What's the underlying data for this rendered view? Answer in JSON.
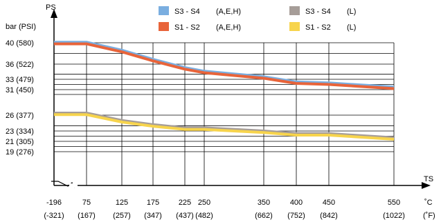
{
  "chart_data": {
    "type": "line",
    "y_axis_label": "PS",
    "y_unit_label": "bar (PSI)",
    "x_axis_label": "TS",
    "x_unit_c": "˚C",
    "x_unit_f": "(˚F)",
    "x_ticks": [
      {
        "c": "-196",
        "f": "(-321)"
      },
      {
        "c": "75",
        "f": "(167)"
      },
      {
        "c": "125",
        "f": "(257)"
      },
      {
        "c": "175",
        "f": "(347)"
      },
      {
        "c": "225",
        "f": "(437)"
      },
      {
        "c": "250",
        "f": "(482)"
      },
      {
        "c": "350",
        "f": "(662)"
      },
      {
        "c": "400",
        "f": "(752)"
      },
      {
        "c": "450",
        "f": "(842)"
      },
      {
        "c": "550",
        "f": "(1022)"
      }
    ],
    "y_ticks": [
      {
        "v": 40,
        "label": "40  (580)"
      },
      {
        "v": 36,
        "label": "36  (522)"
      },
      {
        "v": 33,
        "label": "33  (479)"
      },
      {
        "v": 31,
        "label": "31  (450)"
      },
      {
        "v": 26,
        "label": "26  (377)"
      },
      {
        "v": 23,
        "label": "23  (334)"
      },
      {
        "v": 21,
        "label": "21  (305)"
      },
      {
        "v": 19,
        "label": "19  (276)"
      }
    ],
    "grid_y": [
      40,
      38,
      36,
      34,
      33,
      32,
      31,
      30,
      26,
      24,
      23,
      22,
      21,
      20,
      19
    ],
    "grid_x": [
      75,
      125,
      175,
      225,
      250,
      350,
      400,
      450,
      550
    ],
    "x_range": [
      -196,
      550
    ],
    "y_range": [
      14,
      40
    ],
    "legend_position": "top",
    "series": [
      {
        "name": "S3 - S4",
        "group": "(A,E,H)",
        "color": "#7aaee0",
        "x": [
          -196,
          75,
          125,
          175,
          225,
          250,
          350,
          400,
          450,
          550
        ],
        "y": [
          40.1,
          40.1,
          38.6,
          36.9,
          35.3,
          34.6,
          33.5,
          32.5,
          32.3,
          31.5
        ]
      },
      {
        "name": "S1 - S2",
        "group": "(A,E,H)",
        "color": "#e8643a",
        "x": [
          -196,
          75,
          125,
          175,
          225,
          250,
          350,
          400,
          450,
          550
        ],
        "y": [
          39.8,
          39.8,
          38.3,
          36.6,
          35.0,
          34.3,
          33.2,
          32.2,
          32.0,
          31.2
        ]
      },
      {
        "name": "S3 - S4",
        "group": "(L)",
        "color": "#a69d98",
        "x": [
          -196,
          75,
          125,
          175,
          225,
          250,
          350,
          400,
          450,
          550
        ],
        "y": [
          26.4,
          26.4,
          25.0,
          24.2,
          23.6,
          23.6,
          23.0,
          22.5,
          22.5,
          21.7
        ]
      },
      {
        "name": "S1 - S2",
        "group": "(L)",
        "color": "#f7d44c",
        "x": [
          -196,
          75,
          125,
          175,
          225,
          250,
          350,
          400,
          450,
          550
        ],
        "y": [
          26.1,
          26.1,
          24.7,
          23.9,
          23.3,
          23.3,
          22.7,
          22.2,
          22.2,
          21.4
        ]
      }
    ]
  }
}
